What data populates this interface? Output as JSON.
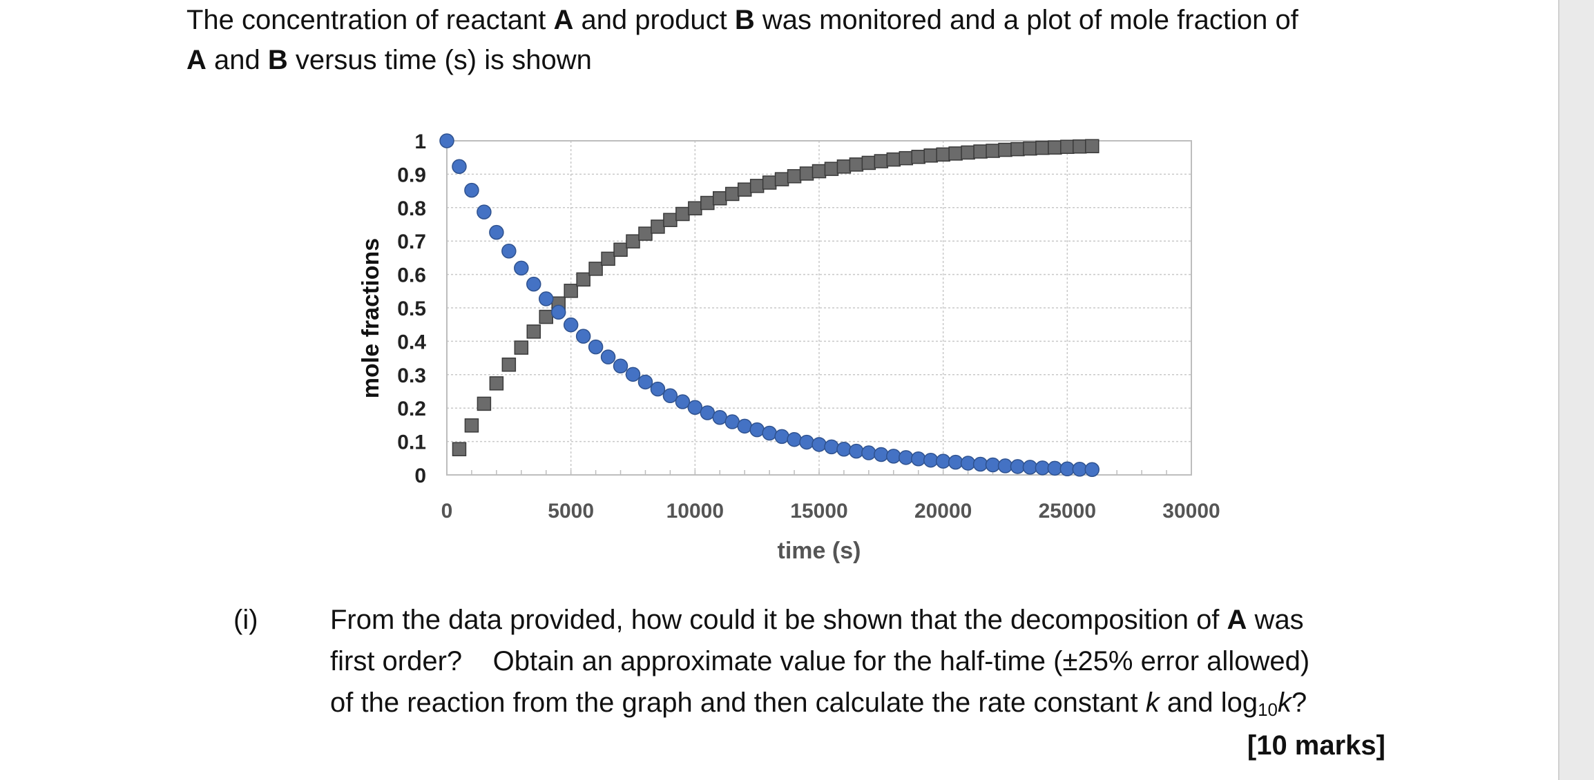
{
  "intro": {
    "line1_a": "The concentration of reactant ",
    "line1_A": "A",
    "line1_b": " and product ",
    "line1_B": "B",
    "line1_c": " was monitored and a plot of mole fraction of",
    "line2_A": "A",
    "line2_a": " and ",
    "line2_B": "B",
    "line2_b": " versus time (s) is shown"
  },
  "colors": {
    "series_a": "#4472c4",
    "series_a_edge": "#2f528f",
    "series_b": "#6b6b6b",
    "series_b_edge": "#3a3a3a",
    "grid": "#c8c8c8",
    "axis_text": "#222222"
  },
  "chart_data": {
    "type": "scatter",
    "title": "",
    "xlabel": "time (s)",
    "ylabel": "mole fractions",
    "xlim": [
      0,
      30000
    ],
    "ylim": [
      0,
      1
    ],
    "x_ticks": [
      "0",
      "5000",
      "10000",
      "15000",
      "20000",
      "25000",
      "30000"
    ],
    "y_ticks": [
      "0",
      "0.1",
      "0.2",
      "0.3",
      "0.4",
      "0.5",
      "0.6",
      "0.7",
      "0.8",
      "0.9",
      "1"
    ],
    "grid": true,
    "legend": "none",
    "series": [
      {
        "marker": "circle",
        "x": [
          0,
          500,
          1000,
          1500,
          2000,
          2500,
          3000,
          3500,
          4000,
          4500,
          5000,
          5500,
          6000,
          6500,
          7000,
          7500,
          8000,
          8500,
          9000,
          9500,
          10000,
          10500,
          11000,
          11500,
          12000,
          12500,
          13000,
          13500,
          14000,
          14500,
          15000,
          15500,
          16000,
          16500,
          17000,
          17500,
          18000,
          18500,
          19000,
          19500,
          20000,
          20500,
          21000,
          21500,
          22000,
          22500,
          23000,
          23500,
          24000,
          24500,
          25000,
          25500,
          26000
        ],
        "y": [
          1.0,
          0.923,
          0.852,
          0.787,
          0.726,
          0.67,
          0.619,
          0.571,
          0.527,
          0.487,
          0.449,
          0.415,
          0.383,
          0.353,
          0.326,
          0.301,
          0.278,
          0.257,
          0.237,
          0.219,
          0.202,
          0.186,
          0.172,
          0.159,
          0.146,
          0.135,
          0.125,
          0.115,
          0.106,
          0.098,
          0.091,
          0.084,
          0.077,
          0.071,
          0.066,
          0.061,
          0.056,
          0.052,
          0.048,
          0.044,
          0.041,
          0.038,
          0.035,
          0.032,
          0.03,
          0.027,
          0.025,
          0.023,
          0.021,
          0.02,
          0.018,
          0.017,
          0.016
        ]
      },
      {
        "marker": "square",
        "x": [
          500,
          1000,
          1500,
          2000,
          2500,
          3000,
          3500,
          4000,
          4500,
          5000,
          5500,
          6000,
          6500,
          7000,
          7500,
          8000,
          8500,
          9000,
          9500,
          10000,
          10500,
          11000,
          11500,
          12000,
          12500,
          13000,
          13500,
          14000,
          14500,
          15000,
          15500,
          16000,
          16500,
          17000,
          17500,
          18000,
          18500,
          19000,
          19500,
          20000,
          20500,
          21000,
          21500,
          22000,
          22500,
          23000,
          23500,
          24000,
          24500,
          25000,
          25500,
          26000
        ],
        "y": [
          0.077,
          0.148,
          0.213,
          0.274,
          0.33,
          0.381,
          0.429,
          0.473,
          0.513,
          0.551,
          0.585,
          0.617,
          0.647,
          0.674,
          0.699,
          0.722,
          0.743,
          0.763,
          0.781,
          0.798,
          0.814,
          0.828,
          0.841,
          0.854,
          0.865,
          0.875,
          0.885,
          0.894,
          0.902,
          0.909,
          0.916,
          0.923,
          0.929,
          0.934,
          0.939,
          0.944,
          0.948,
          0.952,
          0.956,
          0.959,
          0.962,
          0.965,
          0.968,
          0.97,
          0.973,
          0.975,
          0.977,
          0.979,
          0.98,
          0.982,
          0.983,
          0.984
        ]
      }
    ]
  },
  "question": {
    "number": "(i)",
    "line1_a": "From the data provided, how could it be shown that the decomposition of ",
    "line1_A": "A",
    "line1_b": " was",
    "line2": "first order?    Obtain an approximate value for the half-time (±25% error allowed)",
    "line3_a": "of the reaction from the graph and then calculate the rate constant ",
    "line3_k": "k",
    "line3_b": " and log",
    "line3_sub": "10",
    "line3_k2": "k",
    "line3_c": "?",
    "marks": "[10 marks]"
  }
}
